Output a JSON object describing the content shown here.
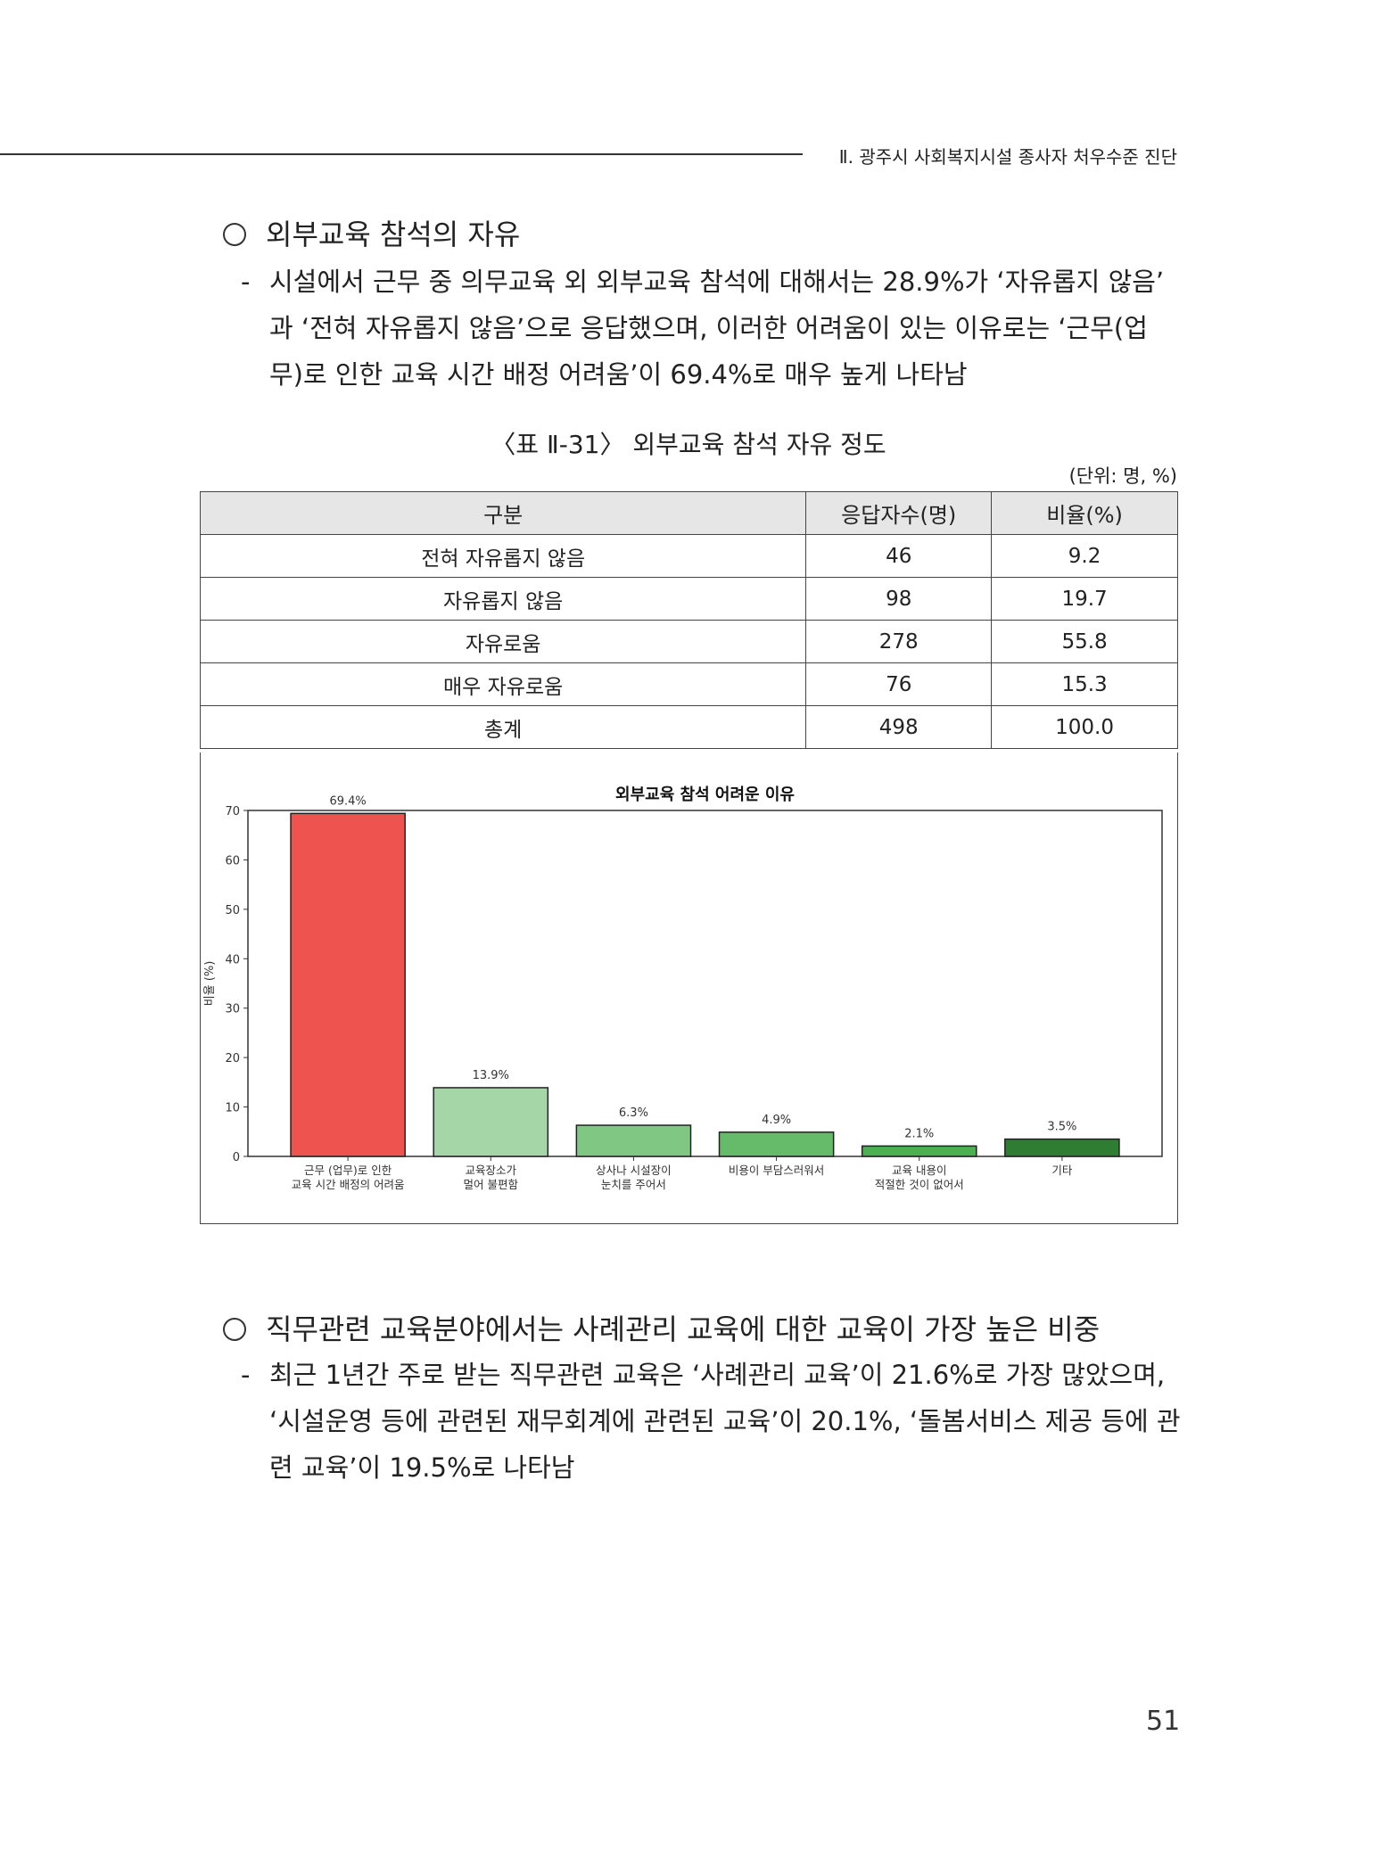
{
  "header": {
    "running_title": "Ⅱ. 광주시 사회복지시설 종사자 처우수준 진단"
  },
  "section1": {
    "heading": "외부교육 참석의 자유",
    "dash": "-",
    "lines": [
      "시설에서 근무 중 의무교육 외 외부교육 참석에 대해서는 28.9%가 ‘자유롭지 않음’",
      "과 ‘전혀 자유롭지 않음’으로 응답했으며, 이러한 어려움이 있는 이유로는 ‘근무(업",
      "무)로 인한 교육 시간 배정 어려움’이 69.4%로 매우 높게 나타남"
    ]
  },
  "table": {
    "caption": "〈표 Ⅱ-31〉 외부교육 참석 자유 정도",
    "unit": "(단위: 명, %)",
    "headers": [
      "구분",
      "응답자수(명)",
      "비율(%)"
    ],
    "rows": [
      [
        "전혀 자유롭지 않음",
        "46",
        "9.2"
      ],
      [
        "자유롭지 않음",
        "98",
        "19.7"
      ],
      [
        "자유로움",
        "278",
        "55.8"
      ],
      [
        "매우 자유로움",
        "76",
        "15.3"
      ],
      [
        "총계",
        "498",
        "100.0"
      ]
    ]
  },
  "chart_data": {
    "type": "bar",
    "title": "외부교육 참석 어려운 이유",
    "xlabel": "",
    "ylabel": "비율 (%)",
    "categories": [
      "근무 (업무)로 인한\n교육 시간 배정의 어려움",
      "교육장소가\n멀어 불편함",
      "상사나 시설장이\n눈치를 주어서",
      "비용이 부담스러워서",
      "교육 내용이\n적절한 것이 없어서",
      "기타"
    ],
    "values": [
      69.4,
      13.9,
      6.3,
      4.9,
      2.1,
      3.5
    ],
    "data_labels": [
      "69.4%",
      "13.9%",
      "6.3%",
      "4.9%",
      "2.1%",
      "3.5%"
    ],
    "colors": [
      "#ef5350",
      "#a5d6a7",
      "#81c784",
      "#66bb6a",
      "#4caf50",
      "#2e7d32"
    ],
    "ylim": [
      0,
      70
    ],
    "yticks": [
      0,
      10,
      20,
      30,
      40,
      50,
      60,
      70
    ],
    "grid": false
  },
  "section2": {
    "heading": "직무관련 교육분야에서는 사례관리 교육에 대한 교육이 가장 높은 비중",
    "dash": "-",
    "lines": [
      "최근 1년간 주로 받는 직무관련 교육은 ‘사례관리 교육’이 21.6%로 가장 많았으며,",
      "‘시설운영 등에 관련된 재무회계에 관련된 교육’이 20.1%, ‘돌봄서비스 제공 등에 관",
      "련 교육’이 19.5%로 나타남"
    ]
  },
  "page_number": "51"
}
